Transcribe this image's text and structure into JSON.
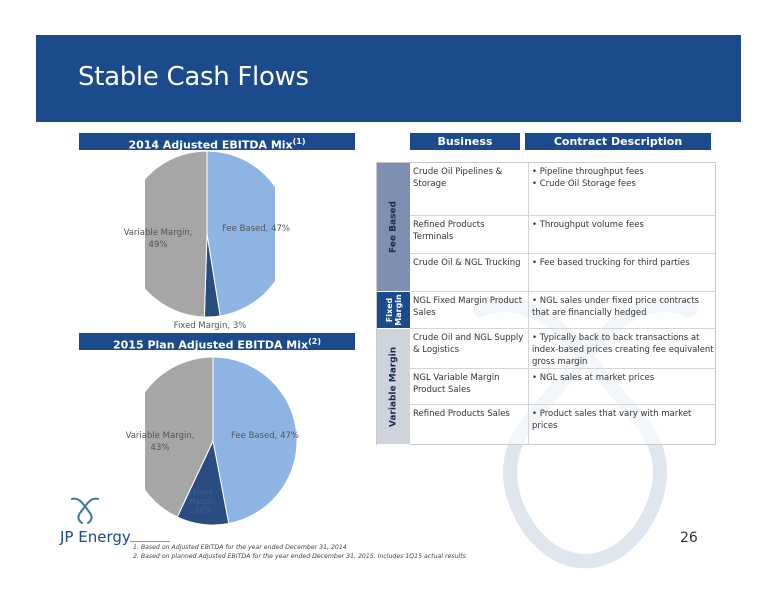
{
  "title": "Stable Cash Flows",
  "pie1": {
    "header": "2014 Adjusted EBITDA Mix",
    "header_sup": "(1)",
    "label_fee": "Fee Based, 47%",
    "label_fixed": "Fixed Margin, 3%",
    "label_var_1": "Variable Margin,",
    "label_var_2": "49%"
  },
  "pie2": {
    "header": "2015 Plan Adjusted EBITDA Mix",
    "header_sup": "(2)",
    "label_fee": "Fee Based, 47%",
    "label_fixed_1": "Fixed",
    "label_fixed_2": "Margin,",
    "label_fixed_3": "10%",
    "label_var_1": "Variable Margin,",
    "label_var_2": "43%"
  },
  "chart_data": [
    {
      "type": "pie",
      "title": "2014 Adjusted EBITDA Mix(1)",
      "categories": [
        "Fee Based",
        "Fixed Margin",
        "Variable Margin"
      ],
      "values": [
        47,
        3,
        49
      ],
      "colors": [
        "#8eb4e3",
        "#2a4d80",
        "#a6a6a6"
      ]
    },
    {
      "type": "pie",
      "title": "2015 Plan Adjusted EBITDA Mix(2)",
      "categories": [
        "Fee Based",
        "Fixed Margin",
        "Variable Margin"
      ],
      "values": [
        47,
        10,
        43
      ],
      "colors": [
        "#8eb4e3",
        "#2a4d80",
        "#a6a6a6"
      ]
    }
  ],
  "table": {
    "header_business": "Business",
    "header_contract": "Contract Description",
    "groups": {
      "fee": "Fee Based",
      "fixed_1": "Fixed",
      "fixed_2": "Margin",
      "variable": "Variable Margin"
    },
    "rows": [
      {
        "business": "Crude Oil Pipelines & Storage",
        "desc": "• Pipeline throughput fees\n• Crude Oil Storage fees"
      },
      {
        "business": "Refined Products Terminals",
        "desc": "•  Throughput volume fees"
      },
      {
        "business": "Crude Oil & NGL Trucking",
        "desc": "• Fee based trucking for third parties"
      },
      {
        "business": "NGL Fixed Margin Product Sales",
        "desc": "• NGL sales under fixed price contracts that are financially hedged"
      },
      {
        "business": "Crude Oil and NGL Supply & Logistics",
        "desc": "• Typically back to back transactions at index-based prices creating fee equivalent gross margin"
      },
      {
        "business": "NGL Variable Margin Product Sales",
        "desc": "• NGL sales at market prices"
      },
      {
        "business": "Refined Products Sales",
        "desc": "• Product sales that vary with market prices"
      }
    ]
  },
  "logo_text": "JP Energy",
  "footnotes": [
    "1.    Based on Adjusted EBITDA for the year ended December 31, 2014",
    "2.    Based on planned Adjusted EBITDA for the year ended December 31, 2015.  Includes 1Q15 actual results"
  ],
  "page_number": "26"
}
